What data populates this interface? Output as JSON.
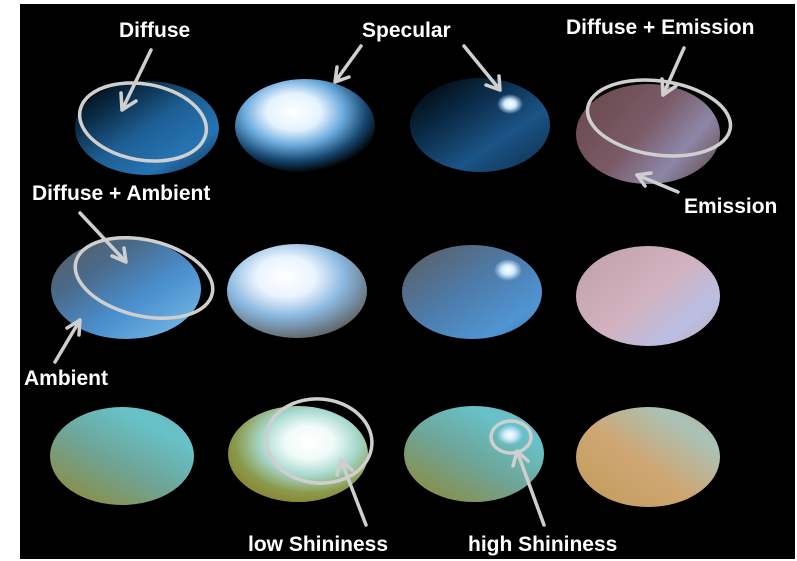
{
  "labels": {
    "diffuse": "Diffuse",
    "specular": "Specular",
    "diffuse_emission": "Diffuse + Emission",
    "emission": "Emission",
    "diffuse_ambient": "Diffuse + Ambient",
    "ambient": "Ambient",
    "low_shininess": "low Shininess",
    "high_shininess": "high Shininess"
  },
  "colors": {
    "background": "#000000",
    "frame": "#ffffff",
    "annotation": "#cfcfcf"
  }
}
